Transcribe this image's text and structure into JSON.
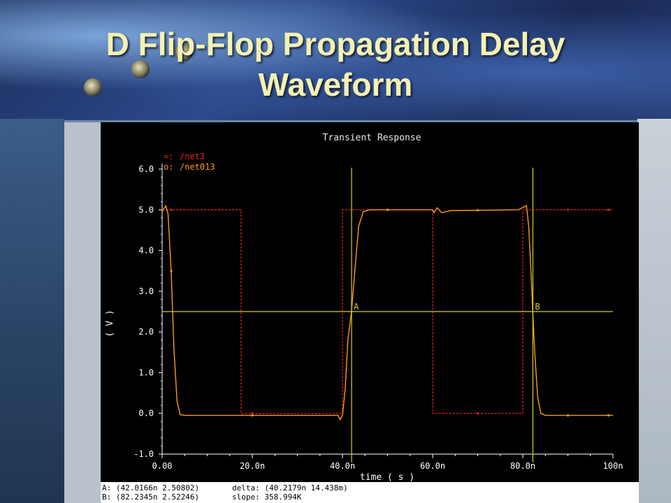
{
  "slide": {
    "title_line1": "D Flip-Flop Propagation Delay",
    "title_line2": "Waveform"
  },
  "colors": {
    "background": "#000000",
    "net3": "#e02020",
    "net013": "#ff9a1a",
    "cursor": "#d8d020",
    "axis_text": "#ffffff"
  },
  "chart_data": {
    "type": "line",
    "title": "Transient Response",
    "xlabel": "time ( s )",
    "ylabel": "( V )",
    "xlim": [
      0,
      100
    ],
    "ylim": [
      -1.0,
      6.0
    ],
    "x_unit": "ns",
    "x_ticks": [
      "0.00",
      "20.0n",
      "40.0n",
      "60.0n",
      "80.0n",
      "100n"
    ],
    "y_ticks": [
      "-1.0",
      "0.0",
      "1.0",
      "2.0",
      "3.0",
      "4.0",
      "5.0",
      "6.0"
    ],
    "grid": false,
    "legend_position": "top-left",
    "series": [
      {
        "name": "/net3",
        "legend_marker": "=:",
        "style": "dashed",
        "points": [
          [
            0,
            5.0
          ],
          [
            17.5,
            5.0
          ],
          [
            17.5,
            0.0
          ],
          [
            40,
            0.0
          ],
          [
            40,
            5.0
          ],
          [
            60,
            5.0
          ],
          [
            60,
            0.0
          ],
          [
            80,
            0.0
          ],
          [
            80,
            5.0
          ],
          [
            100,
            5.0
          ]
        ]
      },
      {
        "name": "/net013",
        "legend_marker": "o:",
        "style": "solid",
        "points": [
          [
            0,
            4.95
          ],
          [
            0.8,
            5.1
          ],
          [
            1.3,
            4.9
          ],
          [
            2.0,
            3.5
          ],
          [
            2.6,
            1.6
          ],
          [
            3.3,
            0.3
          ],
          [
            4.0,
            -0.03
          ],
          [
            5.0,
            -0.05
          ],
          [
            39.0,
            -0.05
          ],
          [
            39.5,
            -0.15
          ],
          [
            40.0,
            -0.05
          ],
          [
            40.6,
            0.6
          ],
          [
            41.2,
            1.8
          ],
          [
            42.0,
            2.5
          ],
          [
            42.8,
            3.6
          ],
          [
            43.6,
            4.6
          ],
          [
            44.6,
            4.95
          ],
          [
            46,
            5.0
          ],
          [
            60,
            5.0
          ],
          [
            60.3,
            4.93
          ],
          [
            61,
            5.05
          ],
          [
            62,
            4.93
          ],
          [
            64,
            4.98
          ],
          [
            79,
            5.0
          ],
          [
            80.8,
            5.1
          ],
          [
            81.3,
            4.6
          ],
          [
            81.8,
            3.5
          ],
          [
            82.2,
            2.5
          ],
          [
            82.7,
            1.4
          ],
          [
            83.3,
            0.4
          ],
          [
            84.0,
            0.0
          ],
          [
            85,
            -0.05
          ],
          [
            100,
            -0.05
          ]
        ]
      }
    ],
    "cursors": {
      "horizontal_level": 2.5,
      "vertical": [
        {
          "label": "A",
          "x": 42.0166
        },
        {
          "label": "B",
          "x": 82.2345
        }
      ]
    }
  },
  "readout": {
    "marker_a": "A: (42.0166n 2.50802)",
    "marker_b": "B: (82.2345n 2.52246)",
    "delta": "delta: (40.2179n 14.438m)",
    "slope": "slope: 358.994K"
  }
}
